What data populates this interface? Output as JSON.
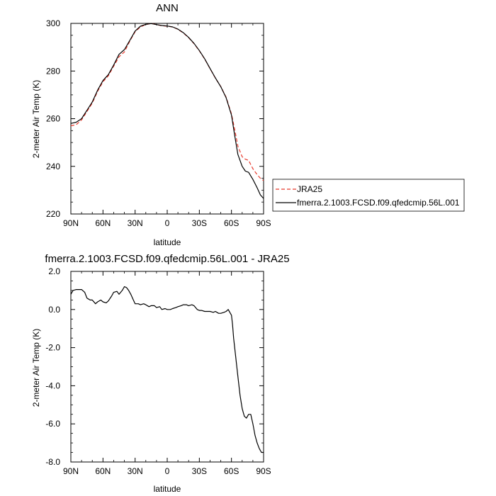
{
  "chart_data": [
    {
      "type": "line",
      "title": "ANN",
      "xlabel": "latitude",
      "ylabel": "2-meter Air Temp (K)",
      "xlim": [
        90,
        -90
      ],
      "ylim": [
        220,
        300
      ],
      "x_ticks": [
        90,
        60,
        30,
        0,
        -30,
        -60,
        -90
      ],
      "x_tick_labels": [
        "90N",
        "60N",
        "30N",
        "0",
        "30S",
        "60S",
        "90S"
      ],
      "y_ticks": [
        220,
        240,
        260,
        280,
        300
      ],
      "y_tick_labels": [
        "220",
        "240",
        "260",
        "280",
        "300"
      ],
      "legend_placement": "right-outside",
      "series": [
        {
          "name": "JRA25",
          "color": "#e8392c",
          "dash": "dashed",
          "x": [
            90,
            85,
            80,
            75,
            70,
            65,
            60,
            55,
            50,
            45,
            40,
            35,
            30,
            25,
            20,
            15,
            10,
            5,
            0,
            -5,
            -10,
            -15,
            -20,
            -25,
            -30,
            -35,
            -40,
            -45,
            -50,
            -55,
            -60,
            -63,
            -66,
            -70,
            -73,
            -76,
            -80,
            -84,
            -87,
            -90
          ],
          "y": [
            257.0,
            257.5,
            259.5,
            263.0,
            266.5,
            271.5,
            275.5,
            278.0,
            282.0,
            286.0,
            288.0,
            292.5,
            296.5,
            298.5,
            299.5,
            300.0,
            299.5,
            299.0,
            298.8,
            298.5,
            297.5,
            296.0,
            294.0,
            291.5,
            288.5,
            285.0,
            281.0,
            277.0,
            273.5,
            269.0,
            262.0,
            255.5,
            248.5,
            244.0,
            243.0,
            242.5,
            239.0,
            236.5,
            235.0,
            234.0
          ]
        },
        {
          "name": "fmerra.2.1003.FCSD.f09.qfedcmip.56L.001",
          "color": "#000000",
          "dash": "solid",
          "x": [
            90,
            85,
            80,
            75,
            70,
            65,
            60,
            55,
            50,
            45,
            40,
            35,
            30,
            25,
            20,
            15,
            10,
            5,
            0,
            -5,
            -10,
            -15,
            -20,
            -25,
            -30,
            -35,
            -40,
            -45,
            -50,
            -55,
            -60,
            -63,
            -66,
            -70,
            -73,
            -76,
            -80,
            -84,
            -87,
            -90
          ],
          "y": [
            258.0,
            258.5,
            260.0,
            263.5,
            267.0,
            272.0,
            276.0,
            278.5,
            282.5,
            287.0,
            289.0,
            292.8,
            296.8,
            298.8,
            299.6,
            299.9,
            299.5,
            299.1,
            298.9,
            298.5,
            297.6,
            296.1,
            294.1,
            291.6,
            288.6,
            285.1,
            281.1,
            277.1,
            273.4,
            268.8,
            261.5,
            253.0,
            245.0,
            240.0,
            238.0,
            237.5,
            234.5,
            231.0,
            228.0,
            226.5
          ]
        }
      ]
    },
    {
      "type": "line",
      "title": "fmerra.2.1003.FCSD.f09.qfedcmip.56L.001 - JRA25",
      "xlabel": "latitude",
      "ylabel": "2-meter Air Temp (K)",
      "xlim": [
        90,
        -90
      ],
      "ylim": [
        -8.0,
        2.0
      ],
      "x_ticks": [
        90,
        60,
        30,
        0,
        -30,
        -60,
        -90
      ],
      "x_tick_labels": [
        "90N",
        "60N",
        "30N",
        "0",
        "30S",
        "60S",
        "90S"
      ],
      "y_ticks": [
        -8,
        -6,
        -4,
        -2,
        0,
        2
      ],
      "y_tick_labels": [
        "-8.0",
        "-6.0",
        "-4.0",
        "-2.0",
        "0.0",
        "2.0"
      ],
      "series": [
        {
          "color": "#000000",
          "dash": "solid",
          "x": [
            90,
            88,
            85,
            80,
            77,
            75,
            72,
            70,
            67,
            65,
            62,
            60,
            57,
            55,
            52,
            50,
            47,
            45,
            42,
            40,
            38,
            36,
            34,
            32,
            30,
            27,
            25,
            22,
            20,
            17,
            15,
            12,
            10,
            7,
            5,
            2,
            0,
            -3,
            -5,
            -8,
            -10,
            -13,
            -15,
            -18,
            -20,
            -23,
            -25,
            -28,
            -30,
            -32,
            -35,
            -38,
            -40,
            -43,
            -45,
            -48,
            -50,
            -53,
            -55,
            -57,
            -60,
            -61,
            -62,
            -64,
            -66,
            -68,
            -70,
            -72,
            -74,
            -76,
            -78,
            -80,
            -82,
            -84,
            -86,
            -88,
            -90
          ],
          "y": [
            0.8,
            1.0,
            1.05,
            1.05,
            0.9,
            0.6,
            0.5,
            0.5,
            0.3,
            0.4,
            0.5,
            0.4,
            0.35,
            0.45,
            0.7,
            0.9,
            0.95,
            0.8,
            1.0,
            1.2,
            1.15,
            1.0,
            0.8,
            0.55,
            0.3,
            0.3,
            0.25,
            0.3,
            0.25,
            0.15,
            0.2,
            0.2,
            0.1,
            0.15,
            0.0,
            0.05,
            0.0,
            0.0,
            0.05,
            0.1,
            0.15,
            0.2,
            0.25,
            0.25,
            0.2,
            0.25,
            0.2,
            0.0,
            -0.05,
            -0.05,
            -0.1,
            -0.1,
            -0.1,
            -0.15,
            -0.1,
            -0.2,
            -0.2,
            -0.15,
            -0.1,
            0.0,
            -0.3,
            -0.8,
            -1.5,
            -2.5,
            -3.5,
            -4.5,
            -5.2,
            -5.6,
            -5.7,
            -5.5,
            -5.5,
            -6.0,
            -6.6,
            -7.0,
            -7.3,
            -7.5,
            -7.5
          ]
        }
      ]
    }
  ]
}
